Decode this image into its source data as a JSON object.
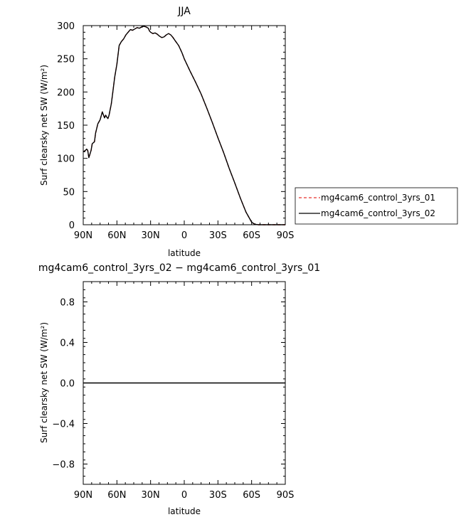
{
  "chart_data": [
    {
      "type": "line",
      "title": "JJA",
      "xlabel": "latitude",
      "ylabel": "Surf clearsky net SW (W/m²)",
      "xticks": [
        "90N",
        "60N",
        "30N",
        "0",
        "30S",
        "60S",
        "90S"
      ],
      "xtick_values": [
        90,
        60,
        30,
        0,
        -30,
        -60,
        -90
      ],
      "yticks": [
        "0",
        "50",
        "100",
        "150",
        "200",
        "250",
        "300"
      ],
      "ytick_values": [
        0,
        50,
        100,
        150,
        200,
        250,
        300
      ],
      "xlim": [
        90,
        -90
      ],
      "ylim": [
        0,
        300
      ],
      "legend_position": "right",
      "series": [
        {
          "name": "mg4cam6_control_3yrs_01",
          "color": "#e8302c",
          "dash": "dashed",
          "x": [
            90,
            88,
            87,
            86,
            85,
            83,
            82,
            80,
            79,
            77,
            75,
            73,
            71,
            70,
            69,
            68,
            67,
            65,
            64,
            62,
            60,
            58,
            56,
            54,
            52,
            50,
            48,
            46,
            44,
            42,
            40,
            38,
            36,
            34,
            32,
            31,
            30,
            28,
            26,
            24,
            22,
            20,
            18,
            16,
            14,
            12,
            10,
            8,
            5,
            2,
            0,
            -5,
            -10,
            -15,
            -20,
            -25,
            -30,
            -35,
            -40,
            -45,
            -50,
            -55,
            -60,
            -62,
            -64,
            -66,
            -68,
            -70,
            -75,
            -80,
            -90
          ],
          "y": [
            110,
            112,
            114,
            112,
            101,
            112,
            122,
            125,
            138,
            152,
            158,
            170,
            161,
            165,
            162,
            160,
            165,
            182,
            195,
            222,
            242,
            270,
            276,
            280,
            286,
            290,
            294,
            293,
            295,
            297,
            296,
            298,
            299,
            298,
            296,
            292,
            290,
            288,
            289,
            287,
            284,
            282,
            283,
            286,
            288,
            286,
            282,
            277,
            270,
            259,
            250,
            232,
            215,
            197,
            176,
            154,
            131,
            109,
            85,
            63,
            40,
            19,
            4,
            1.5,
            0.5,
            0,
            0,
            0,
            0,
            0,
            0
          ]
        },
        {
          "name": "mg4cam6_control_3yrs_02",
          "color": "#000000",
          "dash": "solid",
          "x": [
            90,
            88,
            87,
            86,
            85,
            83,
            82,
            80,
            79,
            77,
            75,
            73,
            71,
            70,
            69,
            68,
            67,
            65,
            64,
            62,
            60,
            58,
            56,
            54,
            52,
            50,
            48,
            46,
            44,
            42,
            40,
            38,
            36,
            34,
            32,
            31,
            30,
            28,
            26,
            24,
            22,
            20,
            18,
            16,
            14,
            12,
            10,
            8,
            5,
            2,
            0,
            -5,
            -10,
            -15,
            -20,
            -25,
            -30,
            -35,
            -40,
            -45,
            -50,
            -55,
            -60,
            -62,
            -64,
            -66,
            -68,
            -70,
            -75,
            -80,
            -90
          ],
          "y": [
            110,
            112,
            114,
            112,
            101,
            112,
            122,
            125,
            138,
            152,
            158,
            170,
            161,
            165,
            162,
            160,
            165,
            182,
            195,
            222,
            242,
            270,
            276,
            280,
            286,
            290,
            294,
            293,
            295,
            297,
            296,
            298,
            299,
            298,
            296,
            292,
            290,
            288,
            289,
            287,
            284,
            282,
            283,
            286,
            288,
            286,
            282,
            277,
            270,
            259,
            250,
            232,
            215,
            197,
            176,
            154,
            131,
            109,
            85,
            63,
            40,
            19,
            4,
            1.5,
            0.5,
            0,
            0,
            0,
            0,
            0,
            0
          ]
        }
      ]
    },
    {
      "type": "line",
      "title": "mg4cam6_control_3yrs_02 − mg4cam6_control_3yrs_01",
      "xlabel": "latitude",
      "ylabel": "Surf clearsky net SW (W/m²)",
      "xticks": [
        "90N",
        "60N",
        "30N",
        "0",
        "30S",
        "60S",
        "90S"
      ],
      "xtick_values": [
        90,
        60,
        30,
        0,
        -30,
        -60,
        -90
      ],
      "yticks": [
        "0.8",
        "0.4",
        "0.0",
        "−0.4",
        "−0.8"
      ],
      "ytick_values": [
        0.8,
        0.4,
        0.0,
        -0.4,
        -0.8
      ],
      "xlim": [
        90,
        -90
      ],
      "ylim": [
        -1,
        1
      ],
      "series": [
        {
          "color": "#000000",
          "dash": "solid",
          "x": [
            90,
            -90
          ],
          "y": [
            0,
            0
          ]
        }
      ]
    }
  ]
}
